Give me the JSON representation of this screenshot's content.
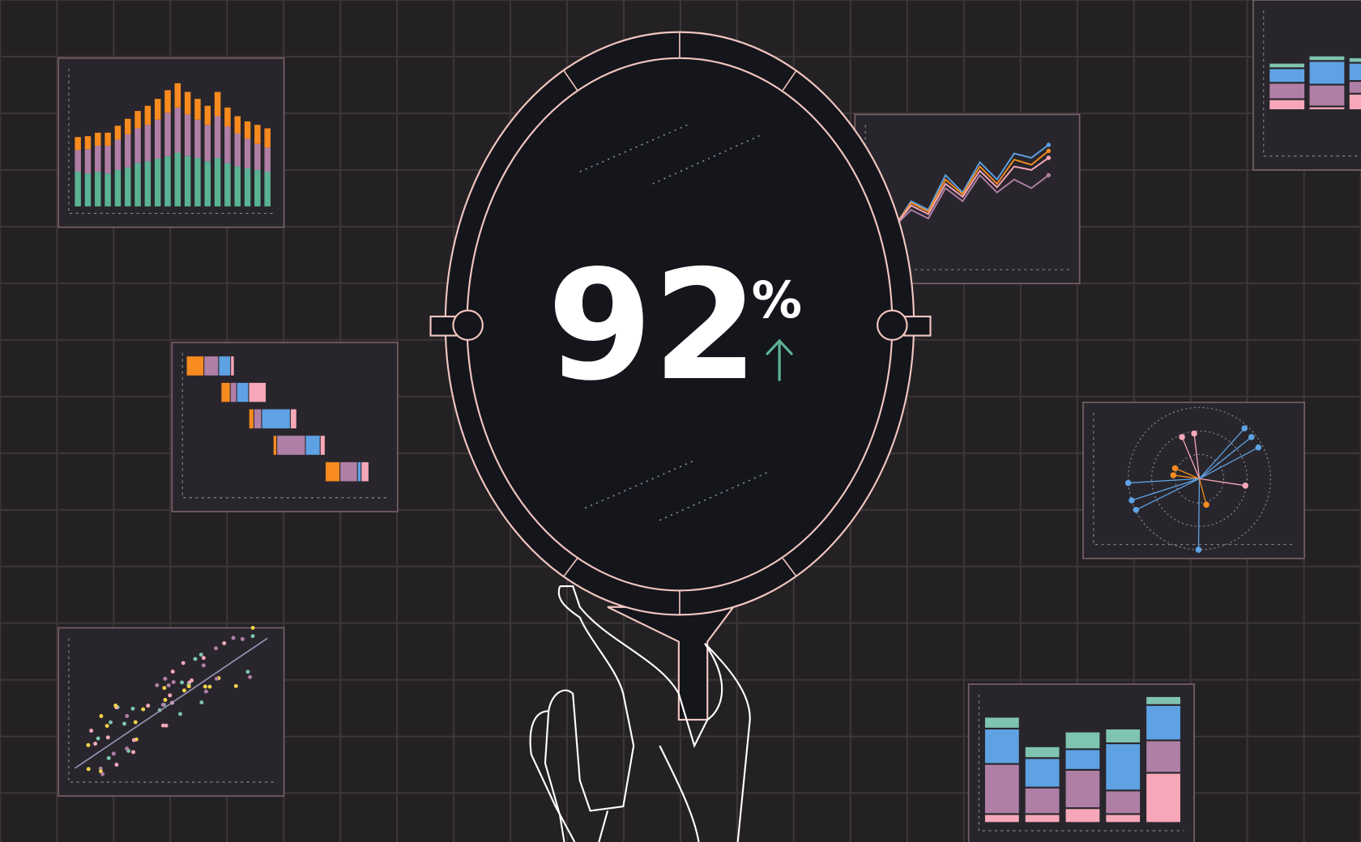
{
  "metric": {
    "value": "92",
    "unit": "%",
    "trend": "up",
    "trend_color": "#5bb394"
  },
  "colors": {
    "background": "#232123",
    "grid": "#3d3538",
    "panel": "#28262c",
    "panel_border": "#7a6268",
    "mirror": "#15151c",
    "mirror_stroke": "#f2c6c0",
    "green": "#5bb394",
    "mauve": "#b07fa6",
    "orange": "#f78b1f",
    "blue": "#5ea2e4",
    "pink": "#f7a8b8",
    "teal": "#7fc4b0",
    "yellow": "#f2d04a"
  },
  "mini_charts": {
    "stacked_bars": [
      [
        40,
        25,
        15
      ],
      [
        38,
        28,
        15
      ],
      [
        40,
        30,
        15
      ],
      [
        38,
        32,
        15
      ],
      [
        42,
        35,
        16
      ],
      [
        45,
        38,
        18
      ],
      [
        50,
        40,
        20
      ],
      [
        52,
        42,
        22
      ],
      [
        55,
        45,
        24
      ],
      [
        58,
        50,
        26
      ],
      [
        62,
        52,
        28
      ],
      [
        58,
        48,
        26
      ],
      [
        56,
        44,
        24
      ],
      [
        52,
        42,
        22
      ],
      [
        56,
        48,
        28
      ],
      [
        50,
        42,
        22
      ],
      [
        46,
        38,
        20
      ],
      [
        44,
        34,
        20
      ],
      [
        42,
        30,
        22
      ],
      [
        40,
        28,
        22
      ]
    ],
    "gantt": [
      [
        0,
        12,
        10,
        8,
        2
      ],
      [
        20,
        6,
        4,
        8,
        12
      ],
      [
        36,
        3,
        5,
        20,
        4
      ],
      [
        50,
        2,
        20,
        10,
        3
      ],
      [
        80,
        10,
        12,
        2,
        5
      ]
    ],
    "lines": [
      [
        0,
        30,
        20,
        60,
        40,
        75,
        55,
        85,
        80,
        95
      ],
      [
        0,
        28,
        18,
        55,
        38,
        70,
        50,
        78,
        72,
        88
      ],
      [
        0,
        25,
        15,
        50,
        35,
        65,
        46,
        70,
        66,
        80
      ],
      [
        0,
        20,
        10,
        45,
        30,
        60,
        40,
        55,
        45,
        60
      ]
    ],
    "bottom_bars": [
      [
        6,
        34,
        24,
        8
      ],
      [
        6,
        18,
        20,
        8
      ],
      [
        10,
        26,
        14,
        12
      ],
      [
        6,
        16,
        32,
        10
      ],
      [
        34,
        22,
        24,
        6
      ]
    ]
  }
}
